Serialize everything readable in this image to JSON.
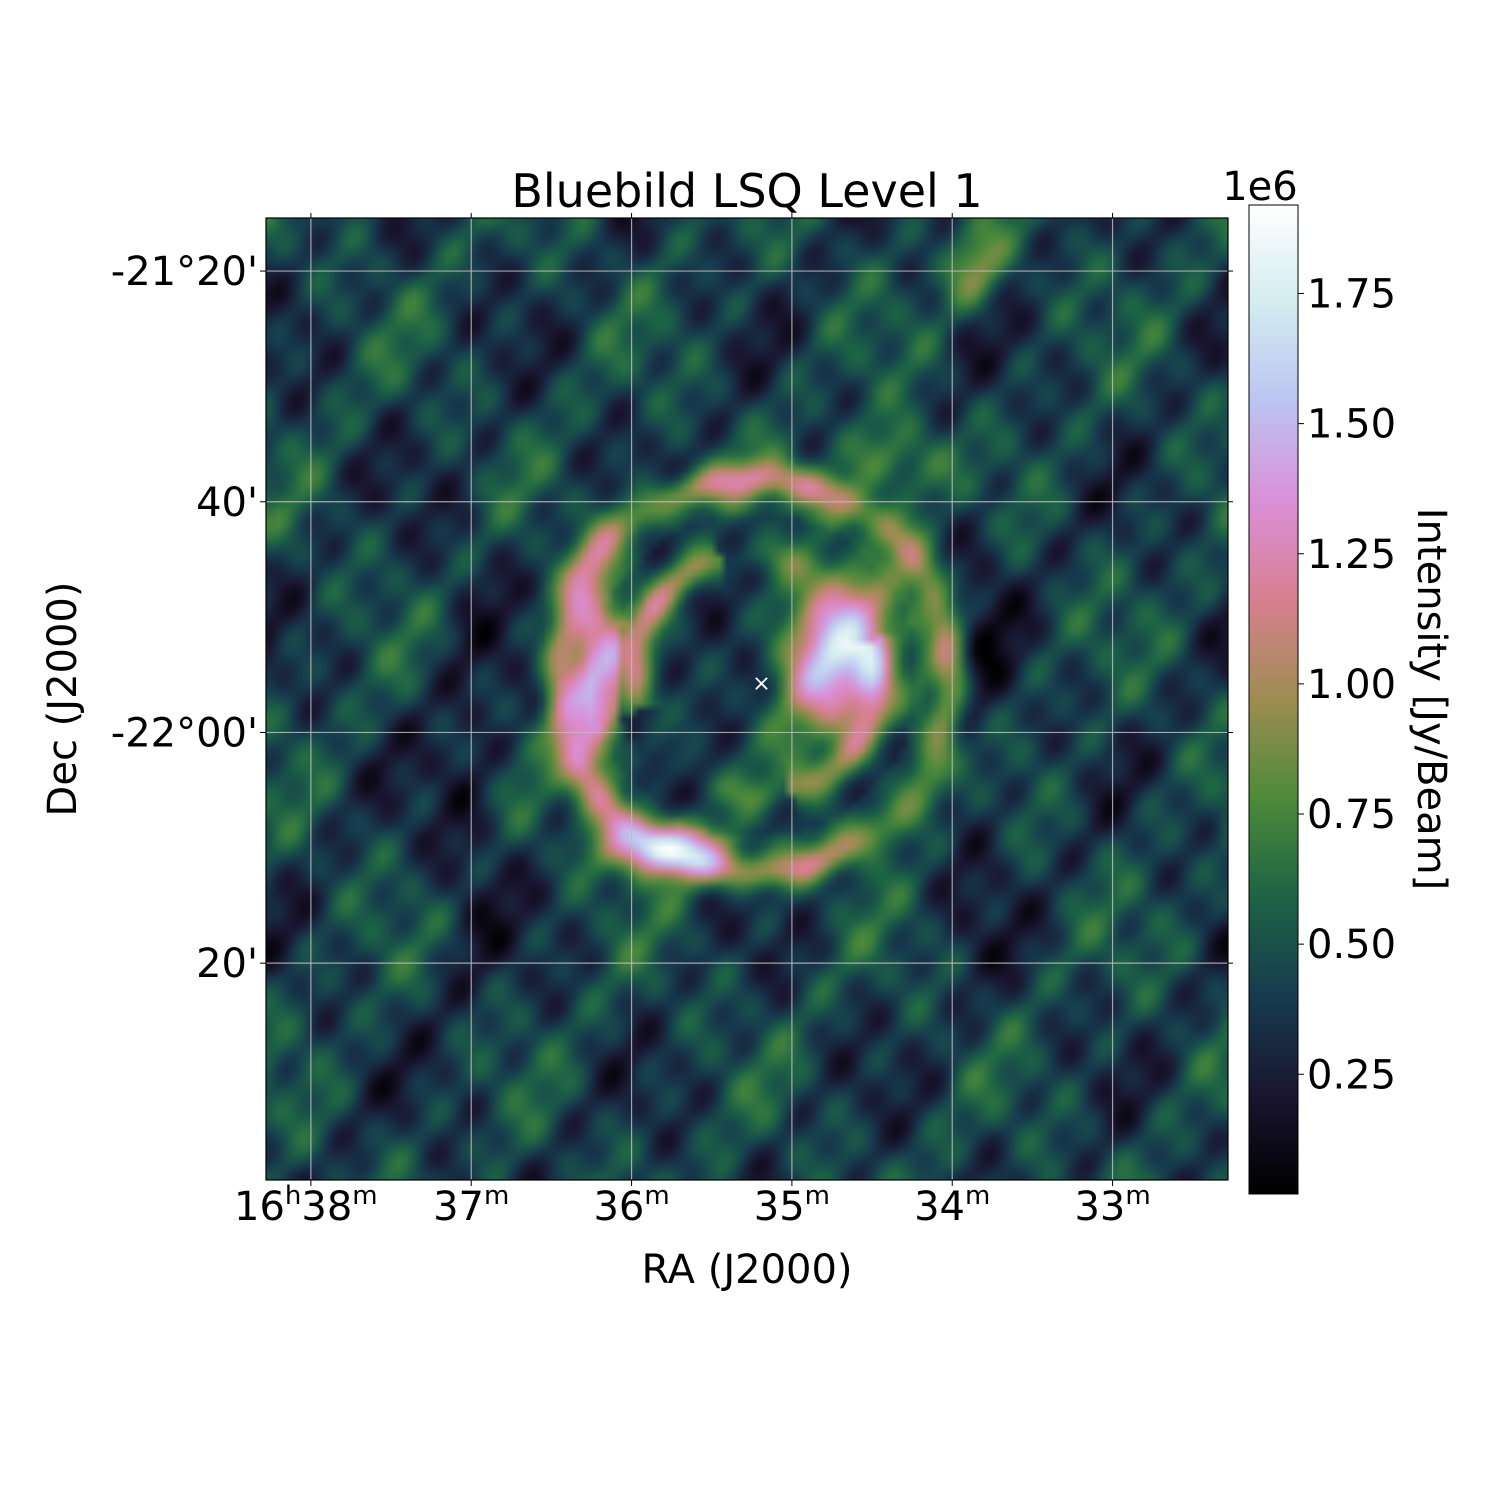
{
  "chart_data": {
    "type": "heatmap",
    "title": "Bluebild LSQ Level 1",
    "xlabel": "RA (J2000)",
    "ylabel": "Dec (J2000)",
    "x_ticks": [
      {
        "h": "16",
        "m": "38"
      },
      {
        "m": "37"
      },
      {
        "m": "36"
      },
      {
        "m": "35"
      },
      {
        "m": "34"
      },
      {
        "m": "33"
      }
    ],
    "x_tick_ra_min": [
      38,
      37,
      36,
      35,
      34,
      33
    ],
    "xlim_ra_min": [
      38.28,
      32.28
    ],
    "y_ticks": [
      "-21°20'",
      "40'",
      "-22°00'",
      "20'"
    ],
    "y_tick_dec_arcmin": [
      -1280,
      -1300,
      -1320,
      -1340
    ],
    "ylim_dec_arcmin": [
      -1358.8,
      -1275.4
    ],
    "grid": true,
    "marker": {
      "symbol": "×",
      "ra_min": 35.19,
      "dec_arcmin": -1315.8,
      "color": "#ffffff"
    },
    "colorbar": {
      "label": "Intensity [Jy/Beam]",
      "scale_text": "1e6",
      "ticks": [
        "0.25",
        "0.50",
        "0.75",
        "1.00",
        "1.25",
        "1.50",
        "1.75"
      ],
      "tick_values": [
        0.25,
        0.5,
        0.75,
        1.0,
        1.25,
        1.5,
        1.75
      ],
      "range": [
        0.02,
        1.92
      ],
      "colormap": "cubehelix",
      "cmap_colors": [
        "#000000",
        "#1a1530",
        "#163b4e",
        "#1d6445",
        "#4d8a3a",
        "#9e8d51",
        "#d87f8f",
        "#da8fd8",
        "#bcc3f2",
        "#d2ecf0",
        "#ffffff"
      ]
    },
    "remnant": {
      "ring_center_ra_min": 35.2,
      "ring_center_dec_arcmin": -1317.0,
      "ring_radius_arcmin": 17.0,
      "peak_intensity": 1.9
    }
  }
}
